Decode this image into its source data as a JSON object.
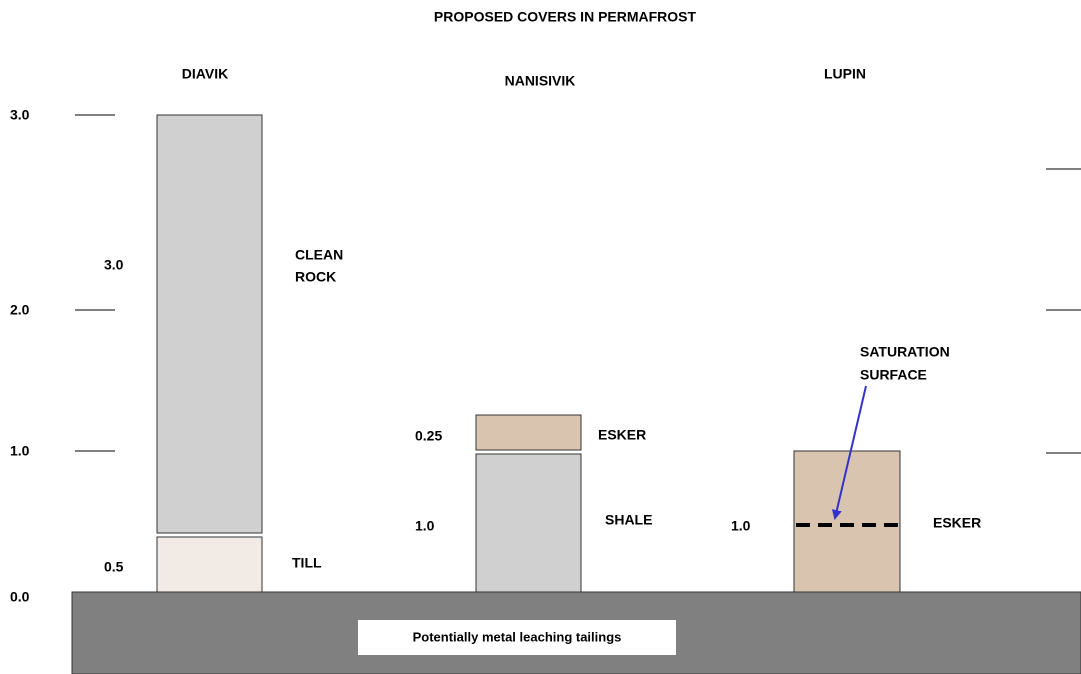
{
  "title": "PROPOSED COVERS IN PERMAFROST",
  "axis_labels": [
    "3.0",
    "2.0",
    "1.0",
    "0.0"
  ],
  "columns": [
    {
      "name": "DIAVIK",
      "layers": [
        {
          "thickness": "3.0",
          "material": [
            "CLEAN",
            "ROCK"
          ]
        },
        {
          "thickness": "0.5",
          "material": [
            "TILL"
          ]
        }
      ]
    },
    {
      "name": "NANISIVIK",
      "layers": [
        {
          "thickness": "0.25",
          "material": [
            "ESKER"
          ]
        },
        {
          "thickness": "1.0",
          "material": [
            "SHALE"
          ]
        }
      ]
    },
    {
      "name": "LUPIN",
      "layers": [
        {
          "thickness": "1.0",
          "material": [
            "ESKER"
          ]
        }
      ],
      "annotation": [
        "SATURATION",
        "SURFACE"
      ]
    }
  ],
  "tailings_label": "Potentially metal leaching tailings"
}
